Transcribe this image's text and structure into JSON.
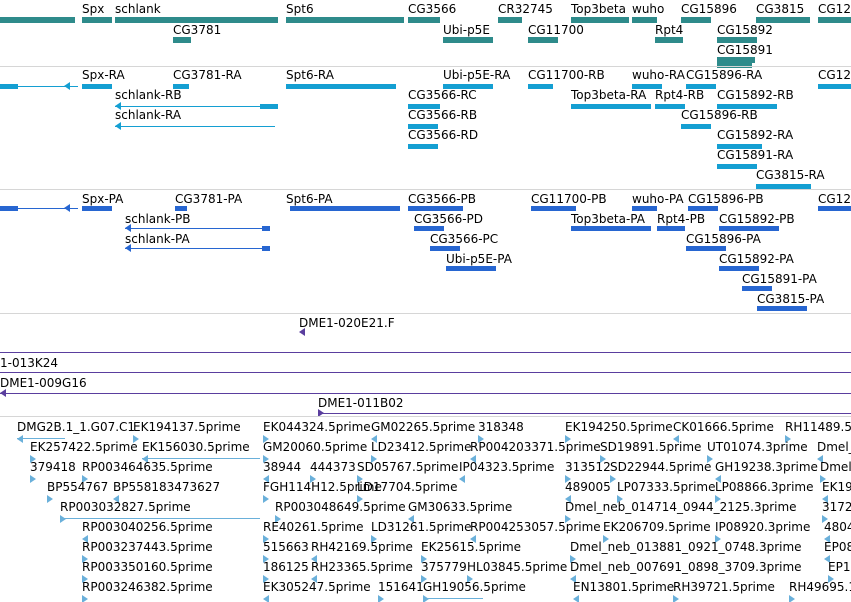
{
  "colors": {
    "gene": "#2e8b8b",
    "rna": "#149fd2",
    "protein": "#2766d1",
    "clone": "#5a3e9e",
    "est": "#6ab0da",
    "separator": "#d6d6d6"
  },
  "tracks": {
    "genes": {
      "labels": [
        "Spx",
        "schlank",
        "CG3781",
        "Spt6",
        "CG3566",
        "Ubi-p5E",
        "CR32745",
        "CG11700",
        "Top3beta",
        "wuho",
        "Rpt4",
        "CG15896",
        "CG15892",
        "CG15891",
        "CG3815",
        "CG12"
      ]
    },
    "transcripts": {
      "labels": [
        "Spx-RA",
        "CG3781-RA",
        "Spt6-RA",
        "Ubi-p5E-RA",
        "CG11700-RB",
        "wuho-RA",
        "CG15896-RA",
        "CG12",
        "schlank-RB",
        "CG3566-RC",
        "Top3beta-RA",
        "Rpt4-RB",
        "CG15892-RB",
        "schlank-RA",
        "CG3566-RB",
        "CG15896-RB",
        "CG3566-RD",
        "CG15892-RA",
        "CG15891-RA",
        "CG3815-RA"
      ]
    },
    "proteins": {
      "labels": [
        "Spx-PA",
        "CG3781-PA",
        "Spt6-PA",
        "CG3566-PB",
        "CG11700-PB",
        "wuho-PA",
        "CG15896-PB",
        "CG12",
        "schlank-PB",
        "CG3566-PD",
        "Top3beta-PA",
        "Rpt4-PB",
        "CG15892-PB",
        "schlank-PA",
        "CG3566-PC",
        "CG15896-PA",
        "Ubi-p5E-PA",
        "CG15892-PA",
        "CG15891-PA",
        "CG3815-PA"
      ]
    },
    "clones": {
      "labels": [
        "DME1-020E21.F",
        "1-013K24",
        "DME1-009G16",
        "DME1-011B02"
      ]
    },
    "ests": {
      "labels": [
        "DMG2B.1_1.G07.C1",
        "EK194137.5prime",
        "EK044324.5prime",
        "GM02265.5prime",
        "318348",
        "EK194250.5prime",
        "CK01666.5prime",
        "RH11489.5",
        "EK257422.5prime",
        "EK156030.5prime",
        "GM20060.5prime",
        "LD23412.5prime",
        "RP004203371.5prime",
        "SD19891.5prime",
        "UT01074.3prime",
        "Dmel_",
        "379418",
        "RP003464635.5prime",
        "38944",
        "444373",
        "SD05767.5prime",
        "IP04323.5prime",
        "313512",
        "SD22944.5prime",
        "GH19238.3prime",
        "Dmel_",
        "BP554767",
        "BP558183473627",
        "FGH114H12.5prime",
        "LD17704.5prime",
        "489005",
        "LP07333.5prime",
        "LP08866.3prime",
        "EK19",
        "RP003032827.5prime",
        "RP003048649.5prime",
        "GM30633.5prime",
        "Dmel_neb_014714_0944_2125.3prime",
        "3172",
        "RP003040256.5prime",
        "RE40261.5prime",
        "LD31261.5prime",
        "RP004253057.5prime",
        "EK206709.5prime",
        "IP08920.3prime",
        "4804",
        "RP003237443.5prime",
        "515663",
        "RH42169.5prime",
        "EK25615.5prime",
        "Dmel_neb_013881_0921_0748.3prime",
        "EP08",
        "RP003350160.5prime",
        "186125",
        "RH23365.5prime",
        "375779",
        "HL03845.5prime",
        "Dmel_neb_007691_0898_3709.3prime",
        "EP1",
        "RP003246382.5prime",
        "EK305247.5prime",
        "151641",
        "GH19056.5prime",
        "EN13801.5prime",
        "RH39721.5prime",
        "RH49695.1"
      ]
    }
  }
}
